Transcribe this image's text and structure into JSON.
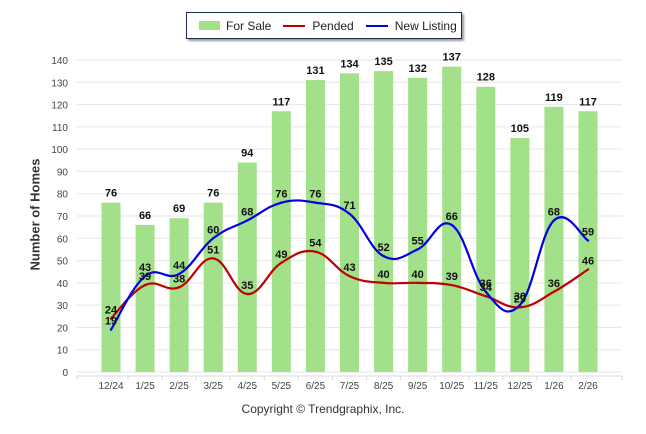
{
  "chart_data": {
    "type": "bar",
    "title": "",
    "xlabel": "",
    "ylabel": "Number of Homes",
    "ylim": [
      0,
      140
    ],
    "yticks": [
      0,
      10,
      20,
      30,
      40,
      50,
      60,
      70,
      80,
      90,
      100,
      110,
      120,
      130,
      140
    ],
    "grid": true,
    "legend_position": "top-center",
    "categories": [
      "12/24",
      "1/25",
      "2/25",
      "3/25",
      "4/25",
      "5/25",
      "6/25",
      "7/25",
      "8/25",
      "9/25",
      "10/25",
      "11/25",
      "12/25",
      "1/26",
      "2/26"
    ],
    "series": [
      {
        "name": "For Sale",
        "type": "bar",
        "color": "#a2e08a",
        "values": [
          76,
          66,
          69,
          76,
          94,
          117,
          131,
          134,
          135,
          132,
          137,
          128,
          105,
          119,
          117
        ]
      },
      {
        "name": "Pended",
        "type": "line",
        "color": "#c00000",
        "values": [
          24,
          39,
          38,
          51,
          35,
          49,
          54,
          43,
          40,
          40,
          39,
          34,
          29,
          36,
          46
        ]
      },
      {
        "name": "New Listing",
        "type": "line",
        "color": "#0000e0",
        "values": [
          19,
          43,
          44,
          60,
          68,
          76,
          76,
          71,
          52,
          55,
          66,
          36,
          30,
          68,
          59
        ]
      }
    ]
  },
  "copyright": "Copyright © Trendgraphix, Inc."
}
